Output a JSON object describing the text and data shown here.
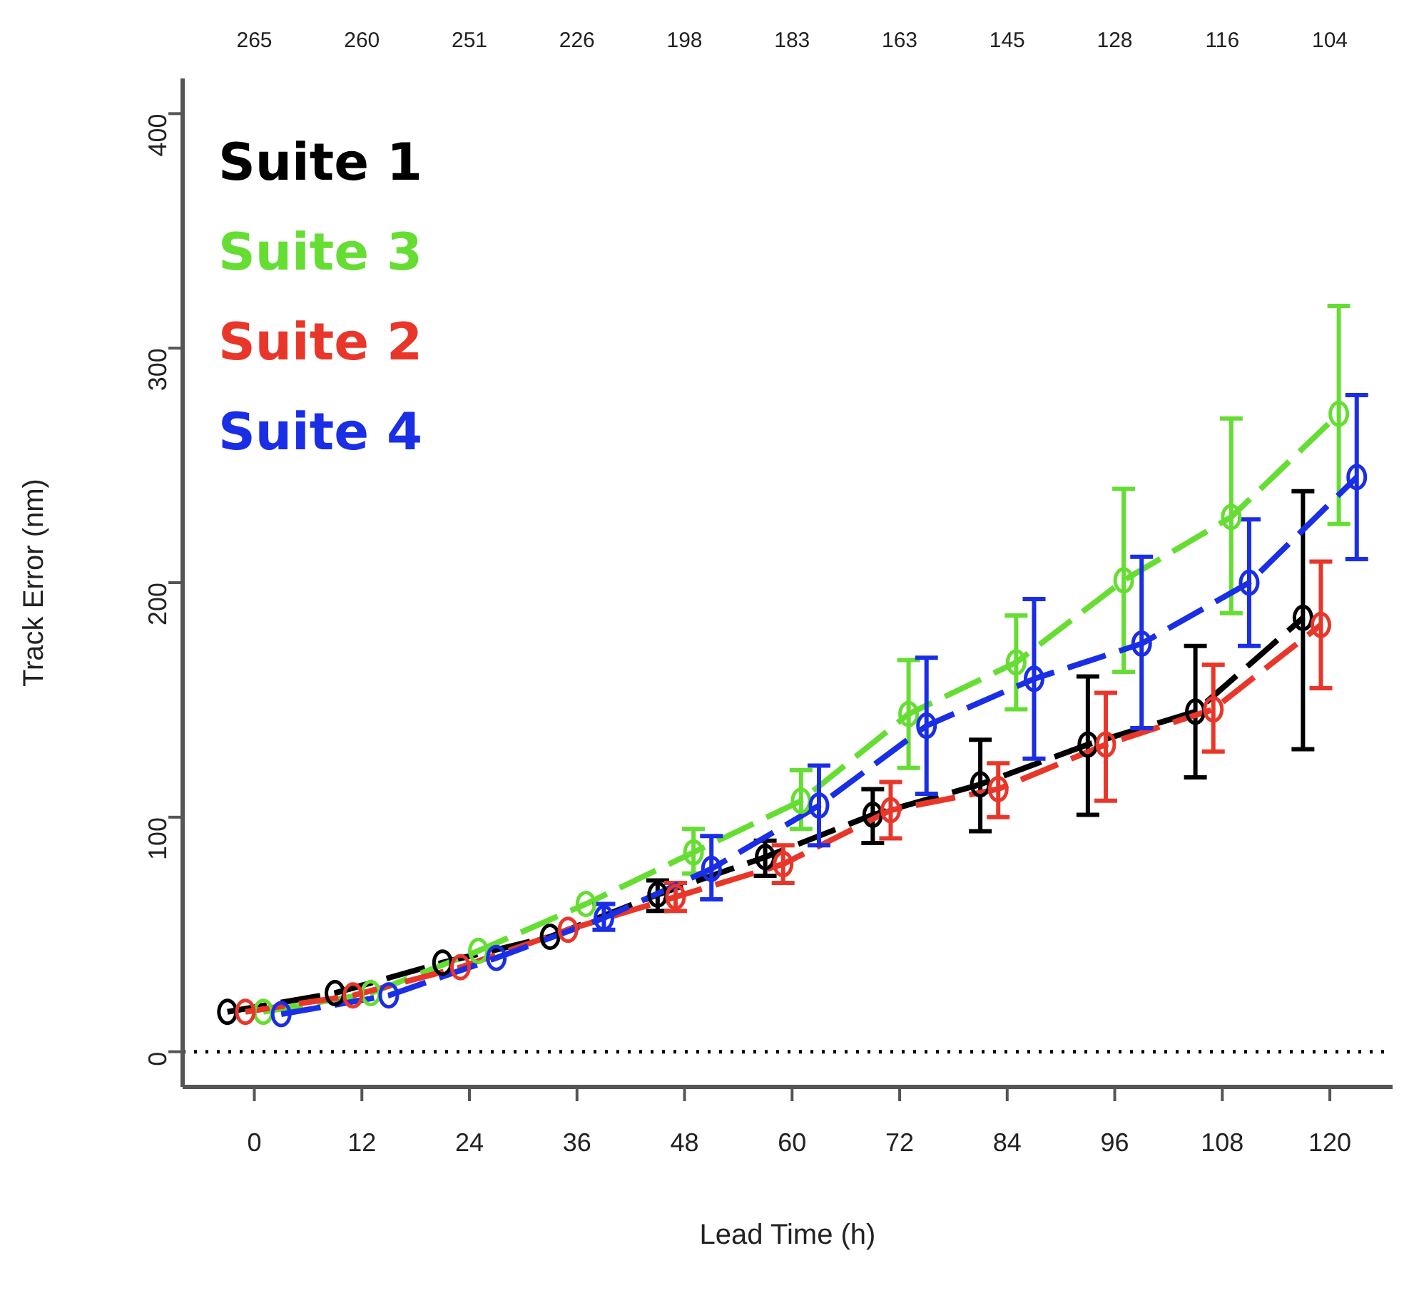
{
  "chart_data": {
    "type": "line",
    "xlabel": "Lead Time (h)",
    "ylabel": "Track Error (nm)",
    "xlim": [
      -8,
      127
    ],
    "xticks": [
      0,
      12,
      24,
      36,
      48,
      60,
      72,
      84,
      96,
      108,
      120
    ],
    "annotations": [
      "265",
      "260",
      "251",
      "226",
      "198",
      "183",
      "163",
      "145",
      "128",
      "116",
      "104"
    ],
    "ylim": [
      -15,
      415
    ],
    "yticks": [
      0,
      100,
      200,
      300,
      400
    ],
    "grid": false,
    "legend": "top left",
    "marker": "circle",
    "line_style": "dashed",
    "ref_lines": [
      {
        "axis": "y",
        "value": 0,
        "line_style": "dotted",
        "color": "#000000"
      }
    ],
    "series": [
      {
        "name": "Suite 1",
        "color": "#000000",
        "x": [
          -3,
          9,
          21,
          33,
          45,
          57,
          69,
          81,
          93,
          105,
          117
        ],
        "values": [
          17,
          25,
          38,
          49,
          67,
          83,
          101,
          114,
          131,
          145,
          185
        ],
        "errors": [
          null,
          null,
          null,
          null,
          [
            60,
            73
          ],
          [
            75,
            90
          ],
          [
            89,
            112
          ],
          [
            94,
            133
          ],
          [
            101,
            160
          ],
          [
            117,
            173
          ],
          [
            129,
            239
          ]
        ]
      },
      {
        "name": "Suite 3",
        "color": "#66dd33",
        "x": [
          1,
          13,
          25,
          37,
          49,
          61,
          73,
          85,
          97,
          109,
          121
        ],
        "values": [
          17,
          25,
          43,
          63,
          85,
          107,
          144,
          166,
          201,
          228,
          272
        ],
        "errors": [
          null,
          null,
          null,
          null,
          [
            76,
            95
          ],
          [
            95,
            120
          ],
          [
            121,
            167
          ],
          [
            146,
            186
          ],
          [
            162,
            240
          ],
          [
            187,
            270
          ],
          [
            225,
            318
          ]
        ]
      },
      {
        "name": "Suite 2",
        "color": "#e8372a",
        "x": [
          -1,
          11,
          23,
          35,
          47,
          59,
          71,
          83,
          95,
          107,
          119
        ],
        "values": [
          17,
          24,
          36,
          52,
          66,
          80,
          103,
          112,
          131,
          146,
          182
        ],
        "errors": [
          null,
          null,
          null,
          null,
          [
            60,
            72
          ],
          [
            72,
            88
          ],
          [
            91,
            115
          ],
          [
            100,
            123
          ],
          [
            107,
            153
          ],
          [
            128,
            165
          ],
          [
            155,
            209
          ]
        ]
      },
      {
        "name": "Suite 4",
        "color": "#1a2ee6",
        "x": [
          3,
          15,
          27,
          39,
          51,
          63,
          75,
          87,
          99,
          111,
          123
        ],
        "values": [
          16,
          24,
          40,
          57,
          78,
          105,
          139,
          159,
          174,
          200,
          245
        ],
        "errors": [
          null,
          null,
          null,
          [
            52,
            63
          ],
          [
            65,
            92
          ],
          [
            88,
            122
          ],
          [
            110,
            168
          ],
          [
            125,
            193
          ],
          [
            138,
            211
          ],
          [
            173,
            227
          ],
          [
            210,
            280
          ]
        ]
      }
    ]
  }
}
